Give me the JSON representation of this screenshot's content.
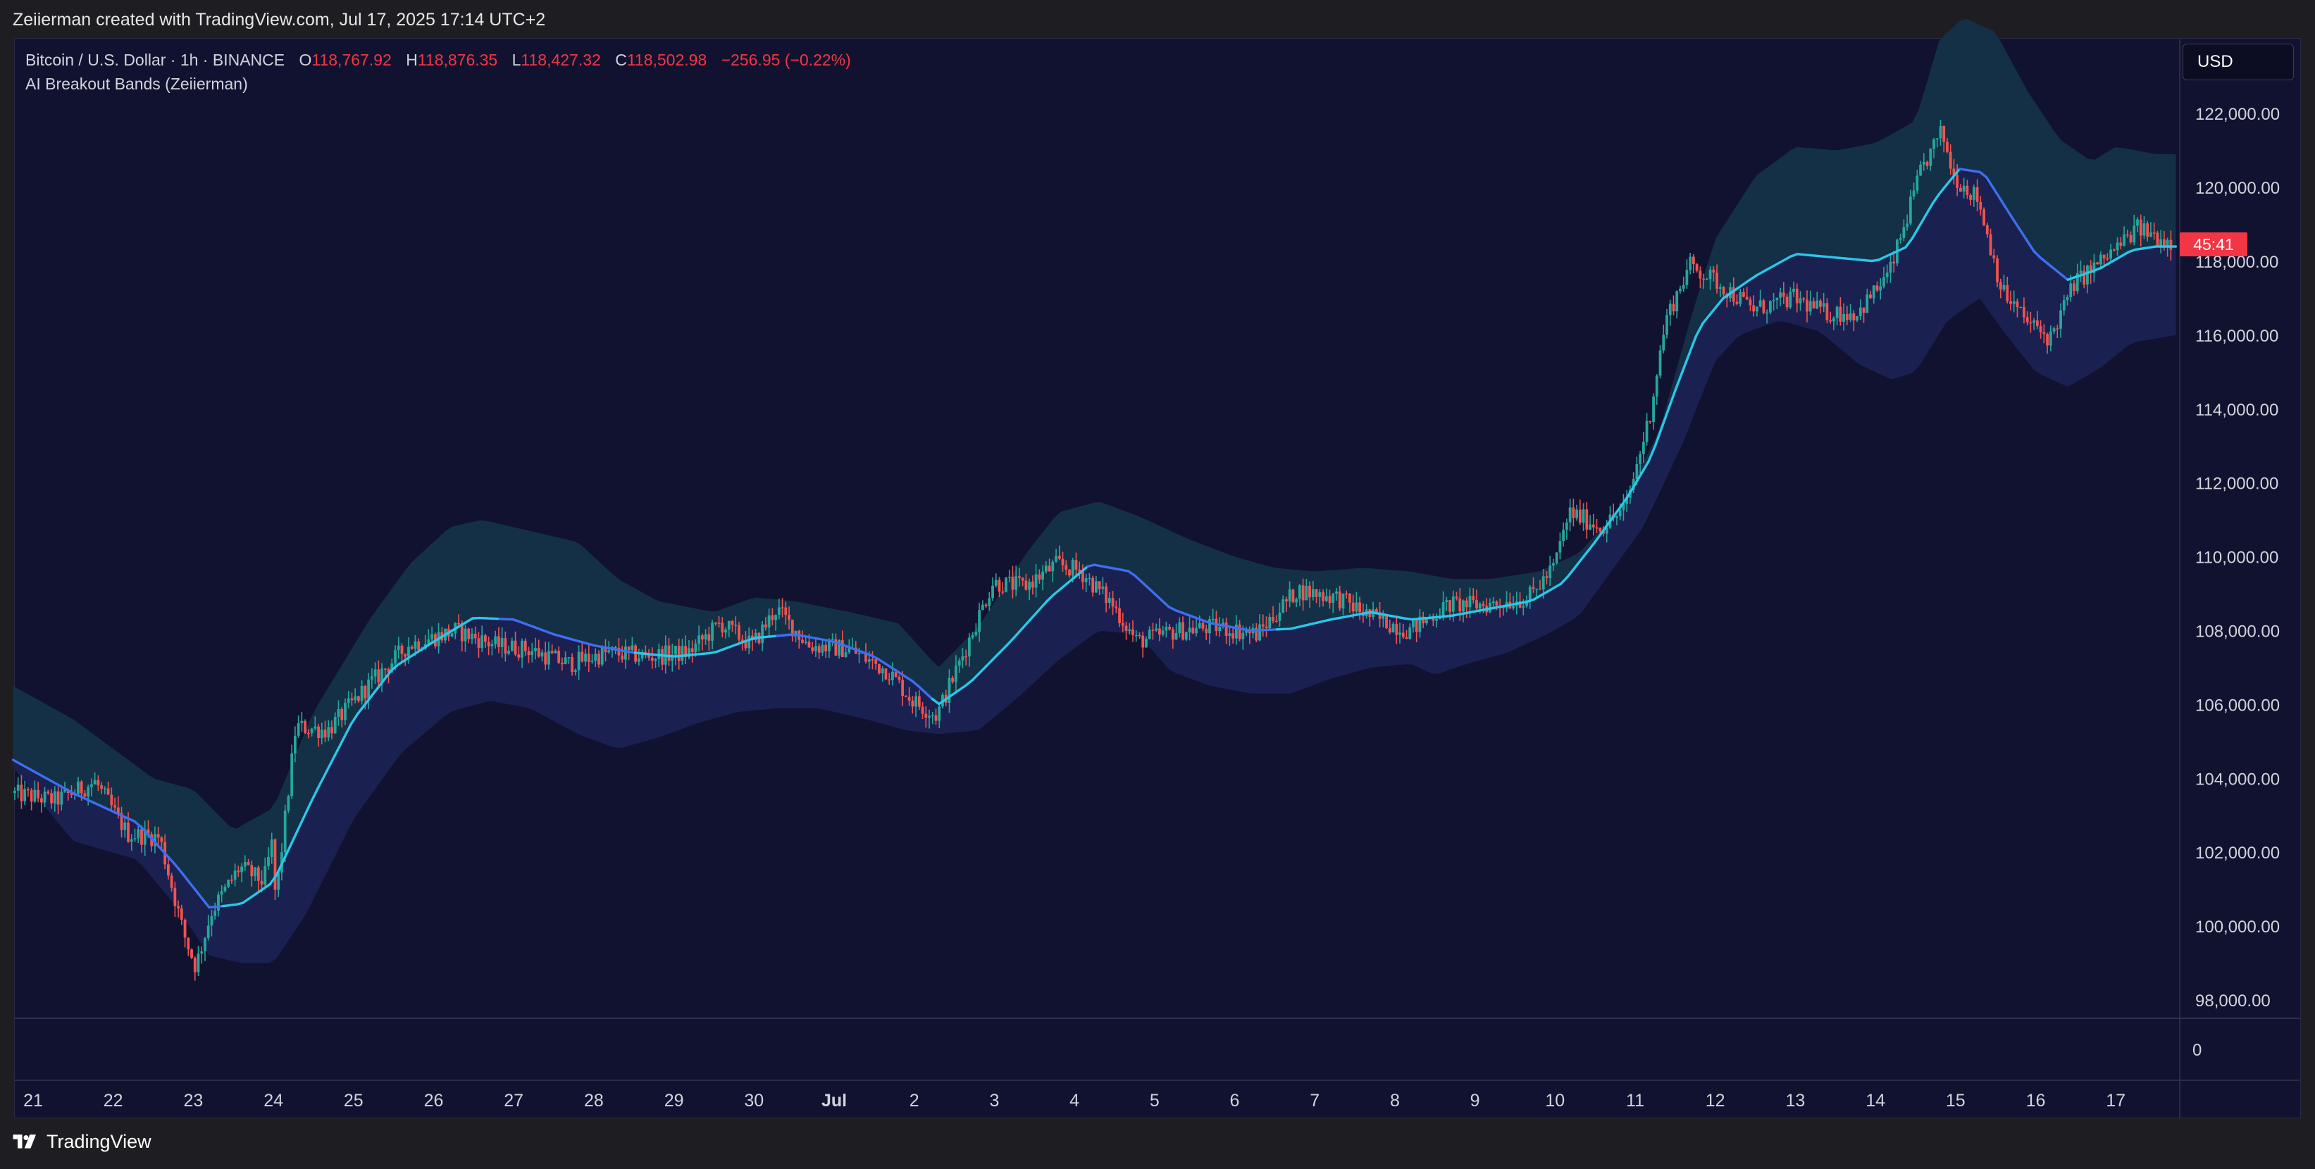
{
  "caption": "Zeiierman created with TradingView.com, Jul 17, 2025 17:14 UTC+2",
  "legend": {
    "symbol": "Bitcoin / U.S. Dollar · 1h · BINANCE",
    "o_label": "O",
    "o_value": "118,767.92",
    "h_label": "H",
    "h_value": "118,876.35",
    "l_label": "L",
    "l_value": "118,427.32",
    "c_label": "C",
    "c_value": "118,502.98",
    "change": "−256.95 (−0.22%)",
    "indicator": "AI Breakout Bands (Zeiierman)"
  },
  "currency": "USD",
  "price_tag": "45:41",
  "brand": "TradingView",
  "colors": {
    "background": "#11122f",
    "up": "#26a69a",
    "down": "#ef5350",
    "upper_band_fill": "#133047",
    "lower_band_fill": "#1a2150",
    "midline": "#2dc6e8",
    "midline_down": "#3f6ef0"
  },
  "chart_data": {
    "type": "candlestick",
    "symbol": "BTCUSD",
    "timeframe": "1h",
    "ylim": [
      97500,
      125000
    ],
    "y_ticks": [
      "122,000.00",
      "120,000.00",
      "118,000.00",
      "116,000.00",
      "114,000.00",
      "112,000.00",
      "110,000.00",
      "108,000.00",
      "106,000.00",
      "104,000.00",
      "102,000.00",
      "100,000.00",
      "98,000.00"
    ],
    "y_tick_values": [
      122000,
      120000,
      118000,
      116000,
      114000,
      112000,
      110000,
      108000,
      106000,
      104000,
      102000,
      100000,
      98000
    ],
    "x_ticks": [
      "21",
      "22",
      "23",
      "24",
      "25",
      "26",
      "27",
      "28",
      "29",
      "30",
      "Jul",
      "2",
      "3",
      "4",
      "5",
      "6",
      "7",
      "8",
      "9",
      "10",
      "11",
      "12",
      "13",
      "14",
      "15",
      "16",
      "17"
    ],
    "x_tick_bold": [
      false,
      false,
      false,
      false,
      false,
      false,
      false,
      false,
      false,
      false,
      true,
      false,
      false,
      false,
      false,
      false,
      false,
      false,
      false,
      false,
      false,
      false,
      false,
      false,
      false,
      false,
      false
    ],
    "x_tick_days": [
      0,
      1,
      2,
      3,
      4,
      5,
      6,
      7,
      8,
      9,
      10,
      11,
      12,
      13,
      14,
      15,
      16,
      17,
      18,
      19,
      20,
      21,
      22,
      23,
      24,
      25,
      26
    ],
    "x_range_days": [
      -0.25,
      26.75
    ],
    "sub_pane_label": "0",
    "price_path": [
      [
        -0.25,
        103600
      ],
      [
        0.3,
        103400
      ],
      [
        0.8,
        103900
      ],
      [
        1.2,
        102500
      ],
      [
        1.6,
        102400
      ],
      [
        1.9,
        99800
      ],
      [
        2.05,
        98900
      ],
      [
        2.25,
        100400
      ],
      [
        2.6,
        101600
      ],
      [
        2.9,
        101200
      ],
      [
        3.0,
        102200
      ],
      [
        3.05,
        100700
      ],
      [
        3.3,
        105400
      ],
      [
        3.7,
        105300
      ],
      [
        4.2,
        106500
      ],
      [
        4.7,
        107600
      ],
      [
        5.3,
        108000
      ],
      [
        5.8,
        107600
      ],
      [
        6.2,
        107500
      ],
      [
        6.7,
        107100
      ],
      [
        7.2,
        107400
      ],
      [
        7.7,
        107300
      ],
      [
        8.2,
        107400
      ],
      [
        8.6,
        108200
      ],
      [
        9.0,
        107600
      ],
      [
        9.3,
        108600
      ],
      [
        9.7,
        107600
      ],
      [
        10.2,
        107500
      ],
      [
        10.7,
        106900
      ],
      [
        11.0,
        106100
      ],
      [
        11.3,
        105700
      ],
      [
        11.6,
        107200
      ],
      [
        12.0,
        109300
      ],
      [
        12.4,
        109200
      ],
      [
        12.8,
        109800
      ],
      [
        13.1,
        109600
      ],
      [
        13.5,
        108700
      ],
      [
        13.8,
        107700
      ],
      [
        14.3,
        108000
      ],
      [
        14.8,
        108100
      ],
      [
        15.3,
        107900
      ],
      [
        15.8,
        109100
      ],
      [
        16.3,
        108900
      ],
      [
        16.7,
        108400
      ],
      [
        17.2,
        108000
      ],
      [
        17.7,
        108700
      ],
      [
        18.2,
        108700
      ],
      [
        18.7,
        108900
      ],
      [
        19.0,
        109700
      ],
      [
        19.2,
        111200
      ],
      [
        19.6,
        110800
      ],
      [
        19.9,
        111300
      ],
      [
        20.2,
        113800
      ],
      [
        20.4,
        116400
      ],
      [
        20.7,
        117900
      ],
      [
        21.0,
        117500
      ],
      [
        21.5,
        116700
      ],
      [
        22.0,
        117000
      ],
      [
        22.4,
        116600
      ],
      [
        22.8,
        116600
      ],
      [
        23.2,
        117700
      ],
      [
        23.6,
        120500
      ],
      [
        23.85,
        121500
      ],
      [
        24.0,
        120300
      ],
      [
        24.3,
        119700
      ],
      [
        24.6,
        117200
      ],
      [
        24.9,
        116400
      ],
      [
        25.2,
        115900
      ],
      [
        25.5,
        117400
      ],
      [
        25.9,
        118100
      ],
      [
        26.3,
        118900
      ],
      [
        26.6,
        118600
      ],
      [
        26.75,
        118500
      ]
    ],
    "midline_path": [
      [
        -0.25,
        104500
      ],
      [
        0.5,
        103600
      ],
      [
        1.3,
        102800
      ],
      [
        1.8,
        101600
      ],
      [
        2.2,
        100500
      ],
      [
        2.6,
        100600
      ],
      [
        3.0,
        101200
      ],
      [
        3.5,
        103500
      ],
      [
        4.0,
        105600
      ],
      [
        4.5,
        107000
      ],
      [
        5.0,
        107700
      ],
      [
        5.5,
        108350
      ],
      [
        6.0,
        108300
      ],
      [
        6.5,
        107900
      ],
      [
        7.0,
        107600
      ],
      [
        7.5,
        107400
      ],
      [
        8.0,
        107300
      ],
      [
        8.5,
        107400
      ],
      [
        9.0,
        107800
      ],
      [
        9.5,
        107900
      ],
      [
        10.0,
        107700
      ],
      [
        10.5,
        107300
      ],
      [
        11.0,
        106600
      ],
      [
        11.3,
        106000
      ],
      [
        11.7,
        106600
      ],
      [
        12.2,
        107700
      ],
      [
        12.7,
        108900
      ],
      [
        13.2,
        109800
      ],
      [
        13.7,
        109600
      ],
      [
        14.2,
        108600
      ],
      [
        14.7,
        108200
      ],
      [
        15.2,
        108000
      ],
      [
        15.7,
        108050
      ],
      [
        16.2,
        108300
      ],
      [
        16.7,
        108500
      ],
      [
        17.2,
        108300
      ],
      [
        17.7,
        108400
      ],
      [
        18.2,
        108600
      ],
      [
        18.7,
        108800
      ],
      [
        19.1,
        109300
      ],
      [
        19.5,
        110400
      ],
      [
        19.9,
        111600
      ],
      [
        20.2,
        112700
      ],
      [
        20.5,
        114500
      ],
      [
        20.8,
        116200
      ],
      [
        21.1,
        117000
      ],
      [
        21.5,
        117600
      ],
      [
        22.0,
        118200
      ],
      [
        22.5,
        118100
      ],
      [
        23.0,
        118000
      ],
      [
        23.4,
        118400
      ],
      [
        23.75,
        119700
      ],
      [
        24.05,
        120500
      ],
      [
        24.35,
        120400
      ],
      [
        24.7,
        119200
      ],
      [
        25.0,
        118200
      ],
      [
        25.4,
        117500
      ],
      [
        25.8,
        117800
      ],
      [
        26.2,
        118300
      ],
      [
        26.5,
        118400
      ],
      [
        26.75,
        118400
      ]
    ],
    "band_upper_path": [
      [
        -0.25,
        106500
      ],
      [
        0.5,
        105600
      ],
      [
        1.5,
        104000
      ],
      [
        2.0,
        103700
      ],
      [
        2.5,
        102600
      ],
      [
        3.0,
        103200
      ],
      [
        3.5,
        105800
      ],
      [
        4.2,
        108300
      ],
      [
        4.7,
        109800
      ],
      [
        5.2,
        110800
      ],
      [
        5.6,
        111000
      ],
      [
        6.2,
        110700
      ],
      [
        6.8,
        110400
      ],
      [
        7.3,
        109400
      ],
      [
        7.8,
        108800
      ],
      [
        8.5,
        108500
      ],
      [
        9.0,
        108900
      ],
      [
        9.5,
        108800
      ],
      [
        10.2,
        108500
      ],
      [
        10.8,
        108200
      ],
      [
        11.3,
        107000
      ],
      [
        11.8,
        108100
      ],
      [
        12.4,
        110100
      ],
      [
        12.8,
        111200
      ],
      [
        13.3,
        111500
      ],
      [
        13.8,
        111100
      ],
      [
        14.4,
        110500
      ],
      [
        15.0,
        110000
      ],
      [
        15.5,
        109700
      ],
      [
        16.0,
        109600
      ],
      [
        16.6,
        109700
      ],
      [
        17.2,
        109600
      ],
      [
        17.7,
        109400
      ],
      [
        18.2,
        109400
      ],
      [
        18.8,
        109600
      ],
      [
        19.3,
        110100
      ],
      [
        19.8,
        111300
      ],
      [
        20.3,
        113400
      ],
      [
        20.7,
        116500
      ],
      [
        21.0,
        118600
      ],
      [
        21.5,
        120300
      ],
      [
        22.0,
        121100
      ],
      [
        22.5,
        121000
      ],
      [
        23.0,
        121200
      ],
      [
        23.5,
        121800
      ],
      [
        23.8,
        124000
      ],
      [
        24.1,
        124600
      ],
      [
        24.5,
        124200
      ],
      [
        24.9,
        122600
      ],
      [
        25.3,
        121300
      ],
      [
        25.7,
        120700
      ],
      [
        26.0,
        121100
      ],
      [
        26.5,
        120900
      ],
      [
        26.75,
        120900
      ]
    ],
    "band_lower_path": [
      [
        -0.25,
        104300
      ],
      [
        0.5,
        102300
      ],
      [
        1.3,
        101800
      ],
      [
        1.8,
        100500
      ],
      [
        2.2,
        99200
      ],
      [
        2.6,
        99000
      ],
      [
        3.0,
        99000
      ],
      [
        3.4,
        100300
      ],
      [
        4.0,
        102900
      ],
      [
        4.6,
        104700
      ],
      [
        5.2,
        105800
      ],
      [
        5.7,
        106100
      ],
      [
        6.2,
        105900
      ],
      [
        6.8,
        105200
      ],
      [
        7.3,
        104800
      ],
      [
        7.8,
        105100
      ],
      [
        8.3,
        105500
      ],
      [
        8.8,
        105800
      ],
      [
        9.3,
        105900
      ],
      [
        9.8,
        105900
      ],
      [
        10.4,
        105600
      ],
      [
        10.9,
        105300
      ],
      [
        11.3,
        105200
      ],
      [
        11.8,
        105300
      ],
      [
        12.3,
        106200
      ],
      [
        12.8,
        107200
      ],
      [
        13.3,
        108000
      ],
      [
        13.8,
        107900
      ],
      [
        14.2,
        106900
      ],
      [
        14.7,
        106500
      ],
      [
        15.2,
        106300
      ],
      [
        15.7,
        106300
      ],
      [
        16.2,
        106700
      ],
      [
        16.7,
        107000
      ],
      [
        17.2,
        107100
      ],
      [
        17.5,
        106800
      ],
      [
        17.9,
        107100
      ],
      [
        18.4,
        107400
      ],
      [
        18.9,
        107900
      ],
      [
        19.3,
        108400
      ],
      [
        19.7,
        109600
      ],
      [
        20.1,
        110800
      ],
      [
        20.6,
        113100
      ],
      [
        21.0,
        115300
      ],
      [
        21.3,
        116000
      ],
      [
        21.8,
        116400
      ],
      [
        22.3,
        116100
      ],
      [
        22.8,
        115200
      ],
      [
        23.2,
        114800
      ],
      [
        23.5,
        115000
      ],
      [
        23.9,
        116400
      ],
      [
        24.3,
        117000
      ],
      [
        24.6,
        116100
      ],
      [
        25.0,
        115000
      ],
      [
        25.4,
        114600
      ],
      [
        25.8,
        115100
      ],
      [
        26.2,
        115800
      ],
      [
        26.75,
        116000
      ]
    ],
    "midline_down_segments": [
      [
        -0.25,
        2.4
      ],
      [
        5.8,
        7.5
      ],
      [
        9.3,
        11.25
      ],
      [
        13.2,
        15.5
      ],
      [
        24.05,
        25.4
      ]
    ]
  }
}
